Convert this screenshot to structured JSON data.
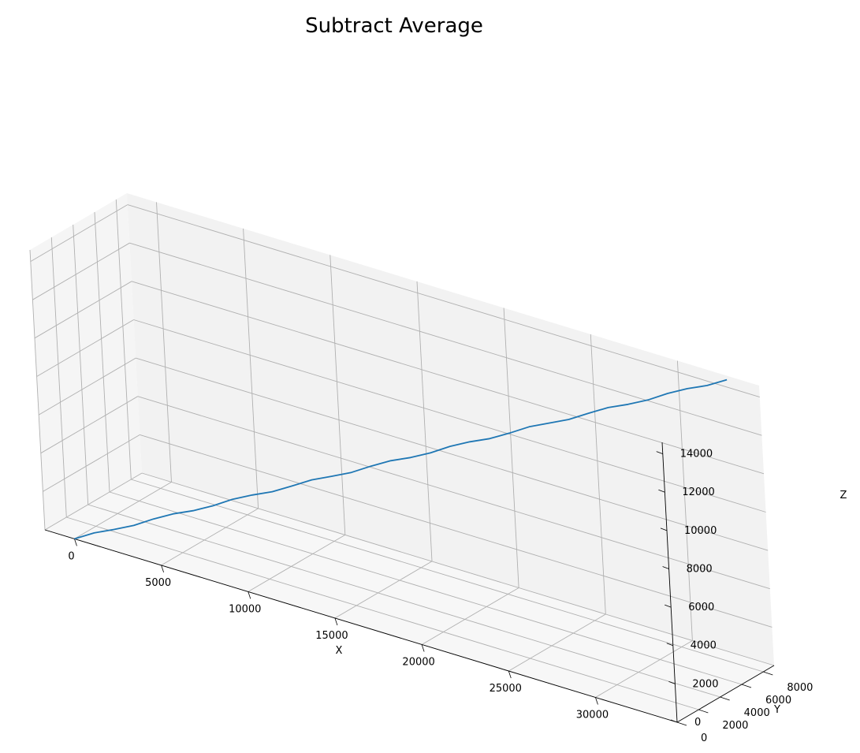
{
  "chart_data": {
    "type": "line",
    "projection": "3d",
    "title": "Subtract Average",
    "xlabel": "X",
    "ylabel": "Y",
    "zlabel": "Z",
    "xlim": [
      -1700,
      34700
    ],
    "ylim": [
      0,
      9000
    ],
    "zlim": [
      0,
      14600
    ],
    "xticks": [
      0,
      5000,
      10000,
      15000,
      20000,
      25000,
      30000
    ],
    "yticks": [
      0,
      2000,
      4000,
      6000,
      8000
    ],
    "zticks": [
      0,
      2000,
      4000,
      6000,
      8000,
      10000,
      12000,
      14000
    ],
    "grid": true,
    "colors": {
      "line": "#1f77b4",
      "pane_side": "#ebebeb",
      "pane_back": "#f2f2f2",
      "pane_floor": "#f7f7f7",
      "grid": "#b0b0b0"
    },
    "series": [
      {
        "name": "",
        "x": [
          0,
          1000,
          2000,
          3000,
          4000,
          5000,
          6000,
          7000,
          8000,
          9000,
          10000,
          11000,
          12000,
          13000,
          14000,
          15000,
          16000,
          17000,
          18000,
          19000,
          20000,
          21000,
          22000,
          23000,
          24000,
          25000,
          26000,
          27000,
          28000,
          29000,
          30000,
          31000,
          32000,
          33000
        ],
        "y": [
          0,
          260,
          530,
          790,
          1060,
          1320,
          1590,
          1850,
          2120,
          2380,
          2650,
          2910,
          3180,
          3440,
          3710,
          3970,
          4240,
          4500,
          4770,
          5030,
          5300,
          5560,
          5830,
          6090,
          6360,
          6620,
          6890,
          7150,
          7420,
          7680,
          7950,
          8210,
          8480,
          8740
        ],
        "z": [
          0,
          440,
          880,
          1320,
          1760,
          2200,
          2640,
          3080,
          3520,
          3960,
          4400,
          4840,
          5280,
          5720,
          6160,
          6600,
          7040,
          7480,
          7920,
          8360,
          8800,
          9240,
          9680,
          10120,
          10560,
          11000,
          11440,
          11880,
          12320,
          12760,
          13200,
          13640,
          14080,
          14520
        ]
      }
    ]
  }
}
